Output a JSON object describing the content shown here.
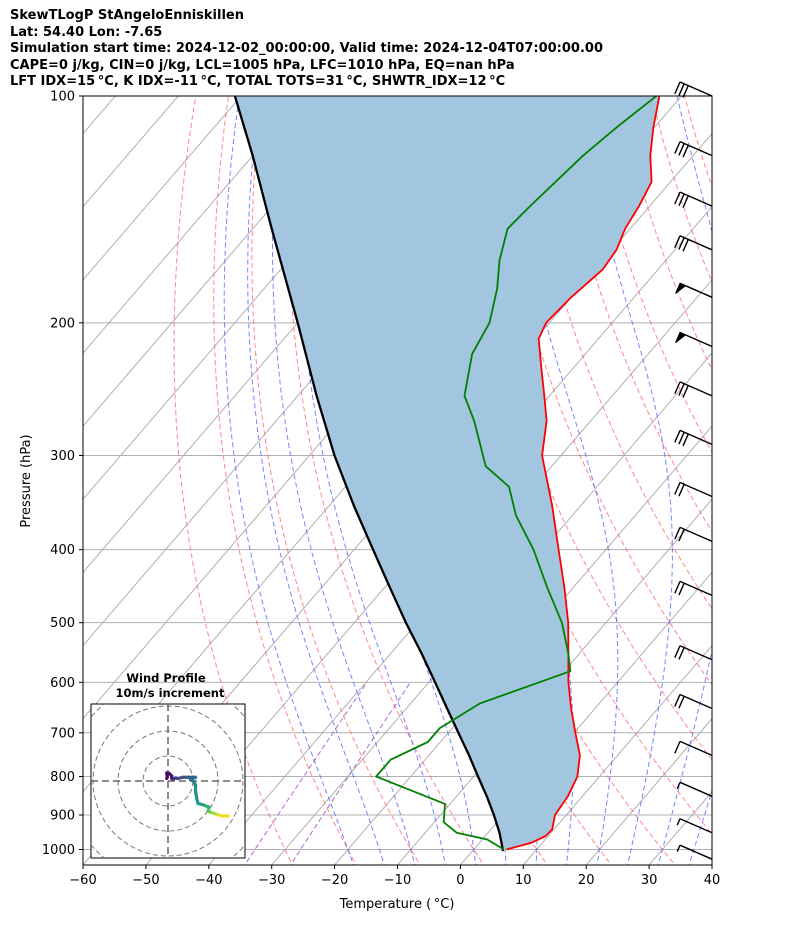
{
  "header": {
    "line1": "SkewTLogP StAngeloEnniskillen",
    "line2": "Lat: 54.40   Lon: -7.65",
    "line3": "Simulation start time: 2024-12-02_00:00:00, Valid time: 2024-12-04T07:00:00.00",
    "line4": "CAPE=0 j/kg, CIN=0 j/kg, LCL=1005 hPa, LFC=1010 hPa, EQ=nan hPa",
    "line5": "LFT IDX=15 °C, K IDX=-11 °C, TOTAL TOTS=31 °C, SHWTR_IDX=12 °C"
  },
  "chart_data": {
    "type": "skewt",
    "xlabel": "Temperature ( °C)",
    "ylabel": "Pressure (hPa)",
    "xlim": [
      -60,
      40
    ],
    "ylim": [
      1050,
      100
    ],
    "x_ticks": [
      "−60",
      "−50",
      "−40",
      "−30",
      "−20",
      "−10",
      "0",
      "10",
      "20",
      "30",
      "40"
    ],
    "x_tick_values": [
      -60,
      -50,
      -40,
      -30,
      -20,
      -10,
      0,
      10,
      20,
      30,
      40
    ],
    "y_ticks": [
      "1000",
      "900",
      "800",
      "700",
      "600",
      "500",
      "400",
      "300",
      "200",
      "100"
    ],
    "y_tick_values": [
      1000,
      900,
      800,
      700,
      600,
      500,
      400,
      300,
      200,
      100
    ],
    "colors": {
      "temperature": "#ff0000",
      "dewpoint": "#008000",
      "parcel": "#000000",
      "cape_fill": "#a3c6e0",
      "dry_adiabat": "#ff6060",
      "moist_adiabat": "#4a5fff",
      "mixing_ratio": "#a040c0",
      "isotherm": "#a8a8a8"
    },
    "temperature": [
      {
        "p": 1000,
        "t": 5.2
      },
      {
        "p": 980,
        "t": 8.2
      },
      {
        "p": 960,
        "t": 9.6
      },
      {
        "p": 940,
        "t": 9.7
      },
      {
        "p": 900,
        "t": 8.2
      },
      {
        "p": 850,
        "t": 7.7
      },
      {
        "p": 800,
        "t": 6.5
      },
      {
        "p": 750,
        "t": 4.0
      },
      {
        "p": 700,
        "t": 0.2
      },
      {
        "p": 650,
        "t": -3.8
      },
      {
        "p": 600,
        "t": -7.8
      },
      {
        "p": 550,
        "t": -11.7
      },
      {
        "p": 500,
        "t": -16.0
      },
      {
        "p": 450,
        "t": -21.3
      },
      {
        "p": 400,
        "t": -27.5
      },
      {
        "p": 350,
        "t": -34.5
      },
      {
        "p": 300,
        "t": -43.0
      },
      {
        "p": 270,
        "t": -47.0
      },
      {
        "p": 250,
        "t": -50.8
      },
      {
        "p": 230,
        "t": -55.0
      },
      {
        "p": 210,
        "t": -59.5
      },
      {
        "p": 200,
        "t": -60.5
      },
      {
        "p": 185,
        "t": -60.0
      },
      {
        "p": 170,
        "t": -58.8
      },
      {
        "p": 160,
        "t": -59.3
      },
      {
        "p": 150,
        "t": -60.8
      },
      {
        "p": 140,
        "t": -61.7
      },
      {
        "p": 130,
        "t": -63.0
      },
      {
        "p": 120,
        "t": -66.8
      },
      {
        "p": 110,
        "t": -70.2
      },
      {
        "p": 100,
        "t": -73.5
      }
    ],
    "dewpoint": [
      {
        "p": 1000,
        "t": 4.8
      },
      {
        "p": 970,
        "t": 0.8
      },
      {
        "p": 950,
        "t": -5.0
      },
      {
        "p": 920,
        "t": -8.5
      },
      {
        "p": 870,
        "t": -10.8
      },
      {
        "p": 800,
        "t": -25.5
      },
      {
        "p": 760,
        "t": -25.5
      },
      {
        "p": 720,
        "t": -22.0
      },
      {
        "p": 690,
        "t": -22.0
      },
      {
        "p": 640,
        "t": -19.0
      },
      {
        "p": 580,
        "t": -9.0
      },
      {
        "p": 550,
        "t": -11.7
      },
      {
        "p": 500,
        "t": -17.0
      },
      {
        "p": 450,
        "t": -24.0
      },
      {
        "p": 400,
        "t": -31.5
      },
      {
        "p": 360,
        "t": -39.0
      },
      {
        "p": 330,
        "t": -44.0
      },
      {
        "p": 310,
        "t": -50.5
      },
      {
        "p": 270,
        "t": -58.5
      },
      {
        "p": 250,
        "t": -63.5
      },
      {
        "p": 220,
        "t": -68.0
      },
      {
        "p": 200,
        "t": -69.5
      },
      {
        "p": 180,
        "t": -73.0
      },
      {
        "p": 165,
        "t": -76.5
      },
      {
        "p": 150,
        "t": -79.5
      },
      {
        "p": 140,
        "t": -79.0
      },
      {
        "p": 120,
        "t": -77.5
      },
      {
        "p": 110,
        "t": -76.0
      },
      {
        "p": 100,
        "t": -74.0
      }
    ],
    "parcel": [
      {
        "p": 1005,
        "t": 4.9
      },
      {
        "p": 950,
        "t": 1.8
      },
      {
        "p": 900,
        "t": -1.5
      },
      {
        "p": 850,
        "t": -5.2
      },
      {
        "p": 800,
        "t": -9.3
      },
      {
        "p": 750,
        "t": -13.6
      },
      {
        "p": 700,
        "t": -18.4
      },
      {
        "p": 650,
        "t": -23.5
      },
      {
        "p": 600,
        "t": -29.0
      },
      {
        "p": 550,
        "t": -35.0
      },
      {
        "p": 500,
        "t": -41.8
      },
      {
        "p": 450,
        "t": -49.0
      },
      {
        "p": 400,
        "t": -57.0
      },
      {
        "p": 350,
        "t": -66.0
      },
      {
        "p": 300,
        "t": -76.0
      },
      {
        "p": 250,
        "t": -87.0
      },
      {
        "p": 200,
        "t": -100.0
      },
      {
        "p": 150,
        "t": -117.0
      },
      {
        "p": 120,
        "t": -130.0
      },
      {
        "p": 100,
        "t": -141.0
      }
    ],
    "wind_barbs": [
      {
        "p": 100,
        "kind": "full",
        "n": 3
      },
      {
        "p": 120,
        "kind": "full",
        "n": 3
      },
      {
        "p": 140,
        "kind": "full",
        "n": 3
      },
      {
        "p": 160,
        "kind": "full",
        "n": 3
      },
      {
        "p": 185,
        "kind": "flag",
        "n": 1
      },
      {
        "p": 215,
        "kind": "flag",
        "n": 1
      },
      {
        "p": 250,
        "kind": "full",
        "n": 3
      },
      {
        "p": 290,
        "kind": "full",
        "n": 3
      },
      {
        "p": 340,
        "kind": "full",
        "n": 2
      },
      {
        "p": 390,
        "kind": "full",
        "n": 2
      },
      {
        "p": 460,
        "kind": "full",
        "n": 2
      },
      {
        "p": 560,
        "kind": "full",
        "n": 2
      },
      {
        "p": 650,
        "kind": "full",
        "n": 2
      },
      {
        "p": 750,
        "kind": "full",
        "n": 1
      },
      {
        "p": 850,
        "kind": "half",
        "n": 1
      },
      {
        "p": 950,
        "kind": "half",
        "n": 1
      },
      {
        "p": 1030,
        "kind": "half",
        "n": 1
      }
    ],
    "hodograph": {
      "title": "Wind Profile",
      "subtitle": "10m/s increment",
      "unit_ms": 10,
      "points": [
        {
          "u": 24.0,
          "v": -14.0,
          "c": "#f0e020"
        },
        {
          "u": 21.5,
          "v": -14.0,
          "c": "#f0e020"
        },
        {
          "u": 20.0,
          "v": -13.5,
          "c": "#c8e040"
        },
        {
          "u": 18.5,
          "v": -13.0,
          "c": "#a0da48"
        },
        {
          "u": 17.0,
          "v": -12.5,
          "c": "#7cd250"
        },
        {
          "u": 16.0,
          "v": -12.0,
          "c": "#50c060"
        },
        {
          "u": 16.5,
          "v": -10.5,
          "c": "#30b070"
        },
        {
          "u": 14.0,
          "v": -9.5,
          "c": "#21a080"
        },
        {
          "u": 12.0,
          "v": -9.0,
          "c": "#1f968b"
        },
        {
          "u": 11.5,
          "v": -7.0,
          "c": "#20908c"
        },
        {
          "u": 11.0,
          "v": -4.0,
          "c": "#21908d"
        },
        {
          "u": 11.0,
          "v": -1.5,
          "c": "#24868e"
        },
        {
          "u": 10.0,
          "v": 0.0,
          "c": "#277e8e"
        },
        {
          "u": 9.0,
          "v": 0.5,
          "c": "#2a768e"
        },
        {
          "u": 11.0,
          "v": 1.5,
          "c": "#2f6c8e"
        },
        {
          "u": 10.0,
          "v": 1.5,
          "c": "#33628d"
        },
        {
          "u": 8.0,
          "v": 1.5,
          "c": "#38588c"
        },
        {
          "u": 6.0,
          "v": 1.5,
          "c": "#3b528b"
        },
        {
          "u": 4.0,
          "v": 1.0,
          "c": "#404688"
        },
        {
          "u": 3.0,
          "v": 1.2,
          "c": "#443a83"
        },
        {
          "u": 2.0,
          "v": 0.8,
          "c": "#472c7a"
        },
        {
          "u": 1.5,
          "v": 1.0,
          "c": "#482173"
        },
        {
          "u": 1.5,
          "v": 2.0,
          "c": "#481a6c"
        },
        {
          "u": 0.5,
          "v": 3.0,
          "c": "#471063"
        },
        {
          "u": -0.5,
          "v": 3.2,
          "c": "#46085c"
        },
        {
          "u": -0.3,
          "v": 1.5,
          "c": "#450457"
        },
        {
          "u": -0.5,
          "v": 1.0,
          "c": "#440154"
        }
      ]
    }
  }
}
